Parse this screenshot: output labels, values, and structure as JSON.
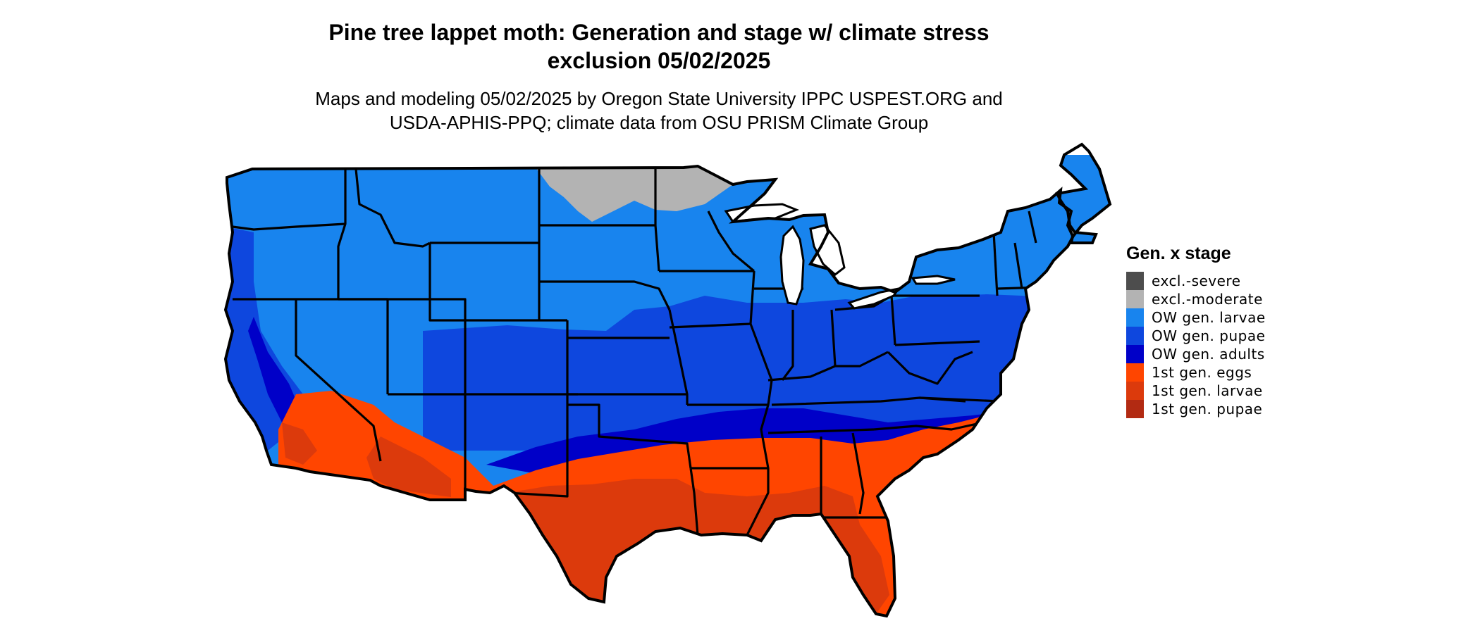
{
  "title": {
    "line1": "Pine tree lappet moth: Generation and stage w/ climate stress",
    "line2": "exclusion 05/02/2025"
  },
  "subtitle": {
    "line1": "Maps and modeling 05/02/2025 by Oregon State University IPPC USPEST.ORG and",
    "line2": "USDA-APHIS-PPQ; climate data from OSU PRISM Climate Group"
  },
  "legend": {
    "title": "Gen. x stage",
    "items": [
      {
        "label": "excl.-severe",
        "color": "#4d4d4d"
      },
      {
        "label": "excl.-moderate",
        "color": "#b3b3b3"
      },
      {
        "label": "OW gen. larvae",
        "color": "#1884ee"
      },
      {
        "label": "OW gen. pupae",
        "color": "#0e47de"
      },
      {
        "label": "OW gen. adults",
        "color": "#0000c8"
      },
      {
        "label": "1st gen. eggs",
        "color": "#ff4500"
      },
      {
        "label": "1st gen. larvae",
        "color": "#dc3a0c"
      },
      {
        "label": "1st gen. pupae",
        "color": "#b22a12"
      }
    ]
  },
  "map": {
    "region": "Contiguous United States",
    "colors": {
      "outline": "#000000",
      "background": "#ffffff"
    }
  }
}
